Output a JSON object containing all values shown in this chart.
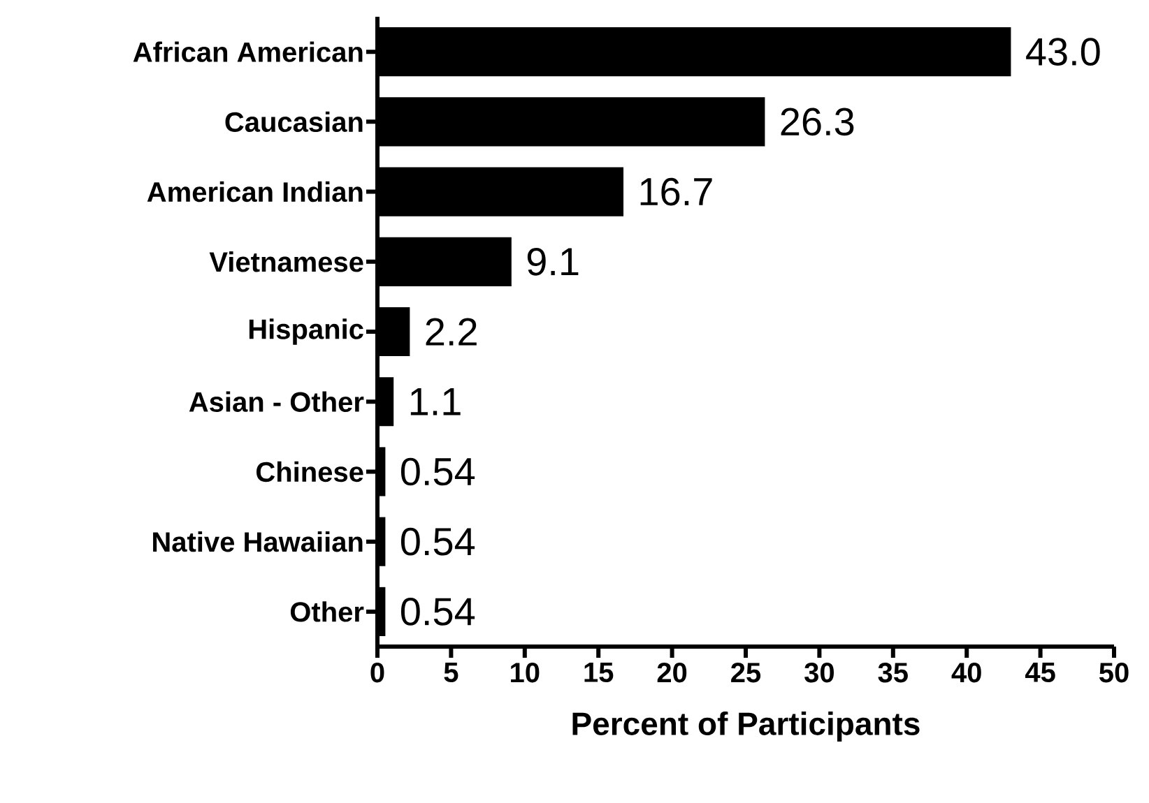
{
  "chart_data": {
    "type": "bar",
    "orientation": "horizontal",
    "xlabel": "Percent of Participants",
    "categories": [
      "African American",
      "Caucasian",
      "American Indian",
      "Vietnamese",
      "Hispanic",
      "Asian - Other",
      "Chinese",
      "Native Hawaiian",
      "Other"
    ],
    "values": [
      43.0,
      26.3,
      16.7,
      9.1,
      2.2,
      1.1,
      0.54,
      0.54,
      0.54
    ],
    "value_labels": [
      "43.0",
      "26.3",
      "16.7",
      "9.1",
      "2.2",
      "1.1",
      "0.54",
      "0.54",
      "0.54"
    ],
    "color": "#000000",
    "xlim": [
      0,
      50
    ],
    "xticks": [
      0,
      5,
      10,
      15,
      20,
      25,
      30,
      35,
      40,
      45,
      50
    ]
  }
}
